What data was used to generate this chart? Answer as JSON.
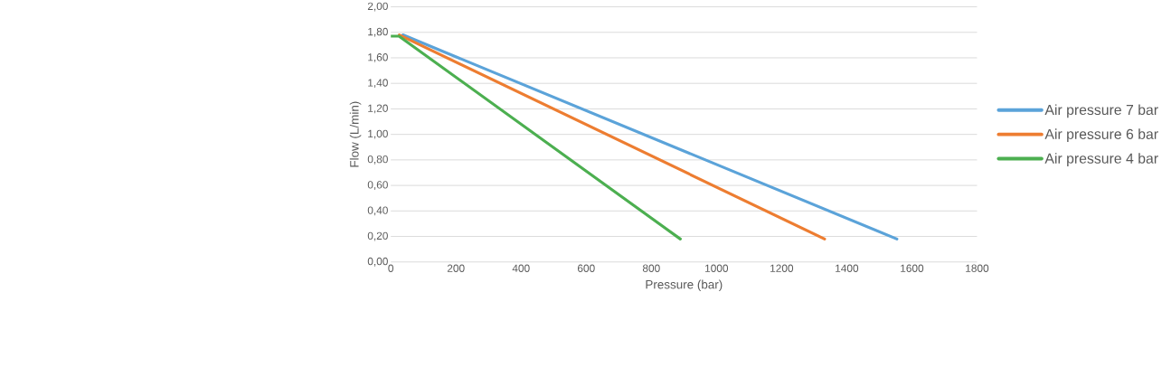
{
  "chart_data": {
    "type": "line",
    "xlabel": "Pressure (bar)",
    "ylabel": "Flow (L/min)",
    "series": [
      {
        "name": "Air pressure 7 bar",
        "color": "#5ba3d9",
        "x": [
          37,
          1554
        ],
        "values": [
          1.78,
          0.18
        ]
      },
      {
        "name": "Air pressure 6 bar",
        "color": "#ed7d31",
        "x": [
          26,
          1332
        ],
        "values": [
          1.78,
          0.18
        ]
      },
      {
        "name": "Air pressure 4 bar",
        "color": "#4caf50",
        "x": [
          0,
          25,
          889
        ],
        "values": [
          1.77,
          1.77,
          0.18
        ]
      }
    ],
    "xlim": [
      0,
      1800
    ],
    "xticks": [
      0,
      200,
      400,
      600,
      800,
      1000,
      1200,
      1400,
      1600,
      1800
    ],
    "ylim": [
      0,
      2
    ],
    "yticks": [
      {
        "value": 0,
        "label": "0,00"
      },
      {
        "value": 0.2,
        "label": "0,20"
      },
      {
        "value": 0.4,
        "label": "0,40"
      },
      {
        "value": 0.6,
        "label": "0,60"
      },
      {
        "value": 0.8,
        "label": "0,80"
      },
      {
        "value": 1.0,
        "label": "1,00"
      },
      {
        "value": 1.2,
        "label": "1,20"
      },
      {
        "value": 1.4,
        "label": "1,40"
      },
      {
        "value": 1.6,
        "label": "1,60"
      },
      {
        "value": 1.8,
        "label": "1,80"
      },
      {
        "value": 2.0,
        "label": "2,00"
      }
    ],
    "grid": "y",
    "legend": "right",
    "marker": "none",
    "line_style": "solid"
  }
}
